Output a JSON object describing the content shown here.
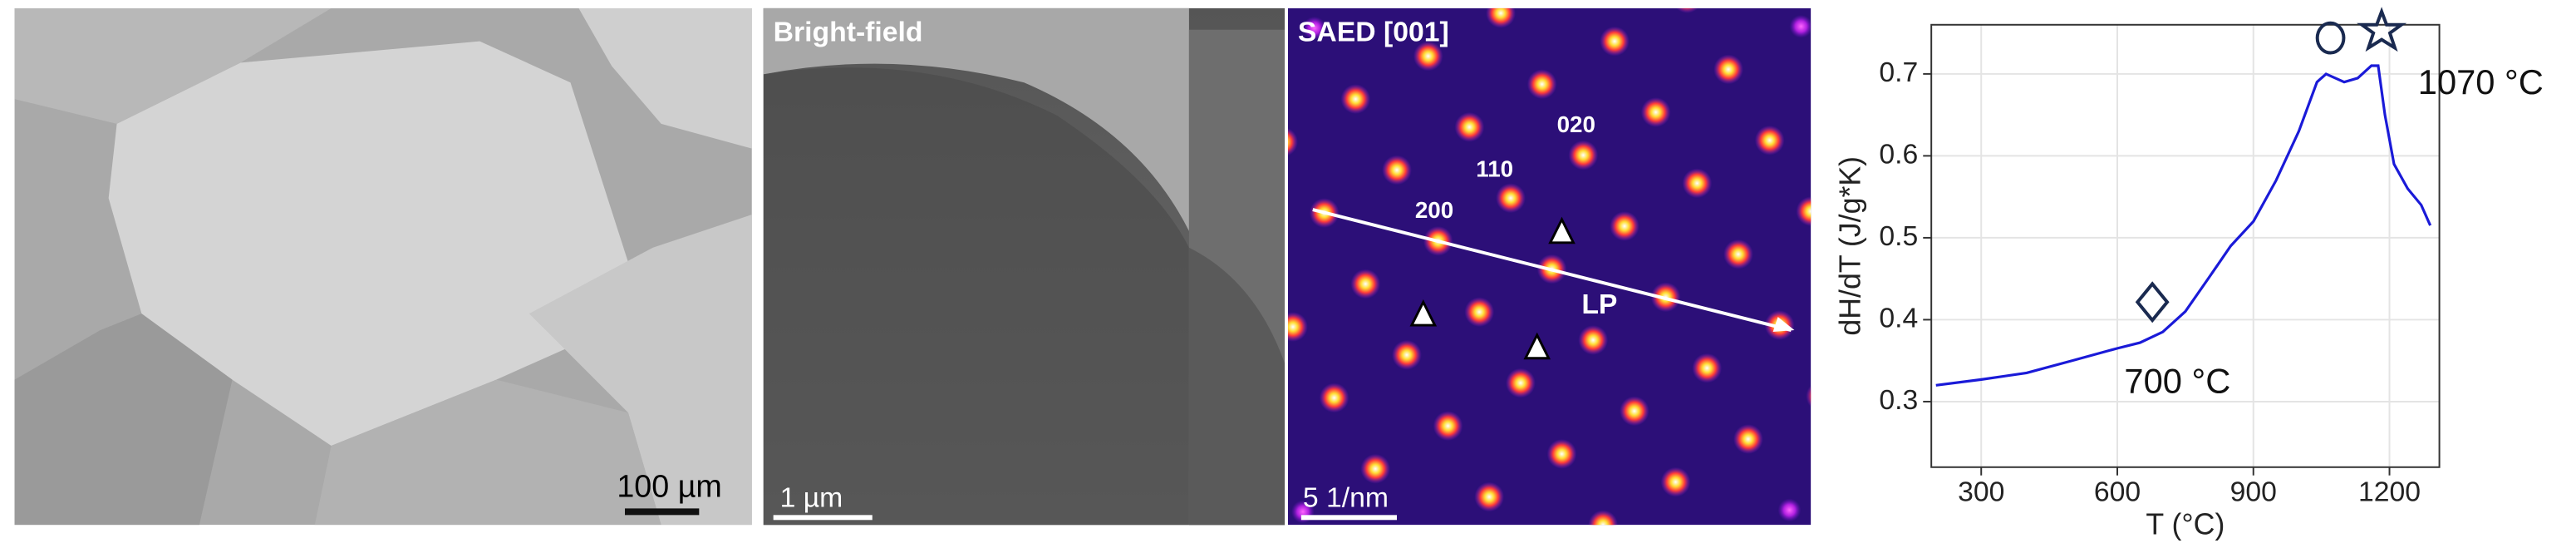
{
  "panels": {
    "sem": {
      "scale_bar": "100 µm"
    },
    "bright_field": {
      "label": "Bright-field",
      "scale_bar": "1 µm"
    },
    "saed": {
      "label": "SAED [001]",
      "scale_bar": "5 1/nm",
      "spots": [
        "020",
        "110",
        "200"
      ],
      "line_label": "LP"
    }
  },
  "chart_data": {
    "type": "line",
    "x_label": "T (°C)",
    "y_label": "dH/dT (J/g*K)",
    "x": [
      200,
      300,
      400,
      500,
      600,
      650,
      700,
      750,
      800,
      850,
      900,
      950,
      1000,
      1040,
      1060,
      1100,
      1130,
      1160,
      1175,
      1190,
      1210,
      1240,
      1270,
      1290
    ],
    "values": [
      0.32,
      0.327,
      0.335,
      0.35,
      0.365,
      0.372,
      0.385,
      0.41,
      0.45,
      0.49,
      0.52,
      0.57,
      0.63,
      0.69,
      0.7,
      0.69,
      0.695,
      0.71,
      0.71,
      0.65,
      0.59,
      0.56,
      0.54,
      0.515
    ],
    "color": "#1a1ad8",
    "xlim": [
      190,
      1310
    ],
    "ylim": [
      0.22,
      0.76
    ],
    "xticks": [
      300,
      600,
      900,
      1200
    ],
    "yticks": [
      0.3,
      0.4,
      0.5,
      0.6,
      0.7
    ],
    "grid": true,
    "annotations": [
      "700 °C",
      "1070 °C"
    ]
  }
}
